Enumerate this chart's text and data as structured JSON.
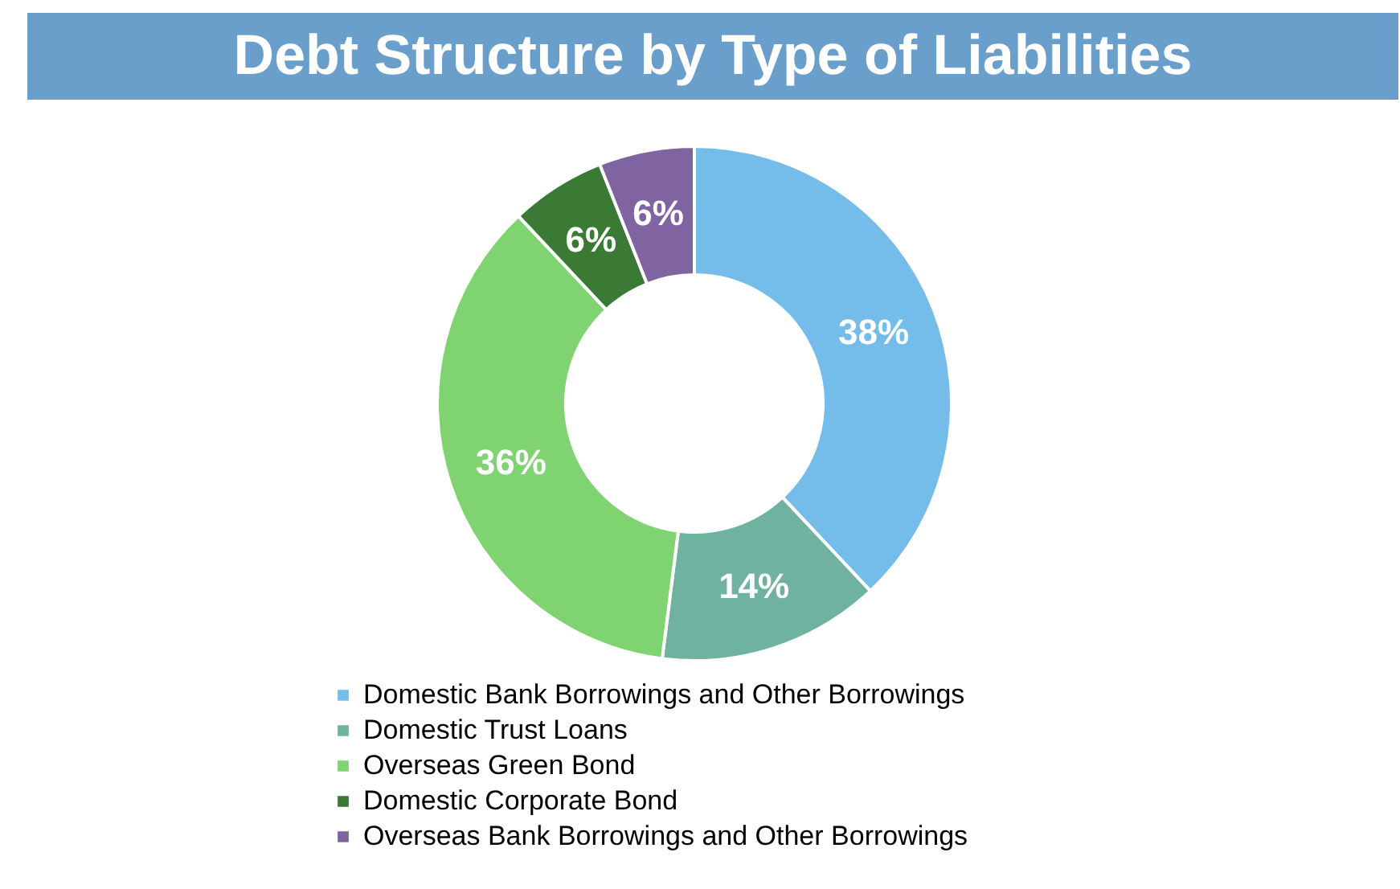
{
  "chart_data": {
    "type": "donut",
    "title": "Debt Structure by Type of Liabilities",
    "categories": [
      "Domestic Bank Borrowings and Other Borrowings",
      "Domestic Trust Loans",
      "Overseas Green Bond",
      "Domestic Corporate Bond",
      "Overseas Bank Borrowings and Other Borrowings"
    ],
    "values": [
      38,
      14,
      36,
      6,
      6
    ],
    "colors": [
      "#74bce9",
      "#6fb2a0",
      "#7fd370",
      "#3b7a34",
      "#8064a2"
    ],
    "value_labels": [
      "38%",
      "14%",
      "36%",
      "6%",
      "6%"
    ],
    "legend": "bottom"
  }
}
